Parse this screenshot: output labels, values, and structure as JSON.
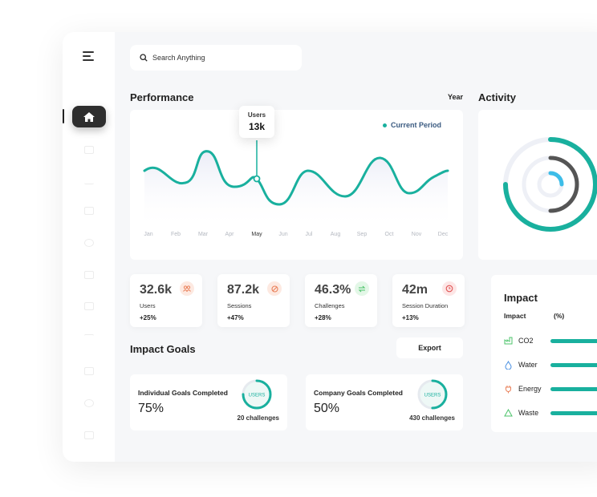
{
  "search": {
    "placeholder": "Search Anything"
  },
  "performance": {
    "title": "Performance",
    "range": "Year",
    "legend": "Current Period",
    "tooltip": {
      "label": "Users",
      "value": "13k"
    },
    "months": [
      "Jan",
      "Feb",
      "Mar",
      "Apr",
      "May",
      "Jun",
      "Jul",
      "Aug",
      "Sep",
      "Oct",
      "Nov",
      "Dec"
    ],
    "active_month": "May"
  },
  "activity": {
    "title": "Activity"
  },
  "stats": [
    {
      "value": "32.6k",
      "label": "Users",
      "change": "+25%",
      "icon": "users-icon",
      "color": "#e9805a"
    },
    {
      "value": "87.2k",
      "label": "Sessions",
      "change": "+47%",
      "icon": "ban-icon",
      "color": "#e9805a"
    },
    {
      "value": "46.3%",
      "label": "Challenges",
      "change": "+28%",
      "icon": "swap-icon",
      "color": "#4bc36a"
    },
    {
      "value": "42m",
      "label": "Session Duration",
      "change": "+13%",
      "icon": "clock-icon",
      "color": "#e05555"
    }
  ],
  "impact_goals": {
    "title": "Impact Goals",
    "export_label": "Export",
    "goals": [
      {
        "title": "Individual Goals Completed",
        "value": "75%",
        "challenges": "20 challenges",
        "ring_label": "USERS",
        "progress": 0.75
      },
      {
        "title": "Company Goals Completed",
        "value": "50%",
        "challenges": "430 challenges",
        "ring_label": "USERS",
        "progress": 0.5
      }
    ]
  },
  "impact": {
    "title": "Impact",
    "col_impact": "Impact",
    "col_percent": "(%)",
    "rows": [
      {
        "label": "CO2",
        "icon": "factory-icon",
        "color": "#4bc36a"
      },
      {
        "label": "Water",
        "icon": "water-drop-icon",
        "color": "#4a90e2"
      },
      {
        "label": "Energy",
        "icon": "plug-icon",
        "color": "#e9805a"
      },
      {
        "label": "Waste",
        "icon": "recycle-icon",
        "color": "#4bc36a"
      }
    ]
  },
  "colors": {
    "accent": "#19b09e",
    "dark": "#2e2e2e",
    "activity_blue": "#3dbde8",
    "activity_gray": "#555555"
  }
}
